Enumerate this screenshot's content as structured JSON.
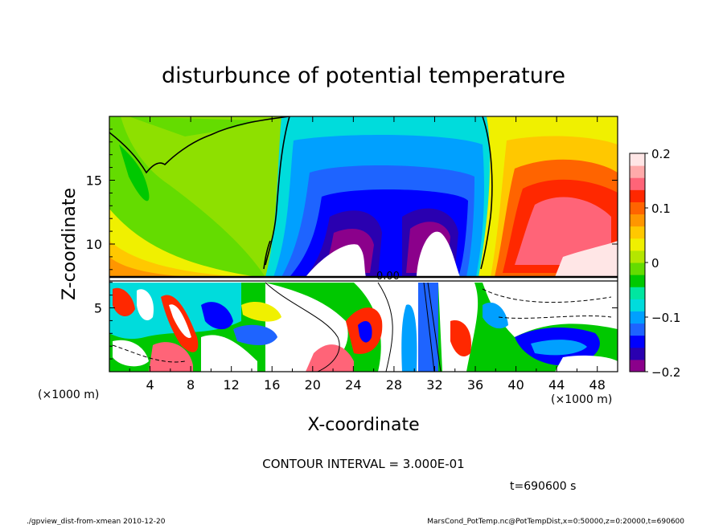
{
  "chart_data": {
    "type": "heatmap",
    "title": "disturbunce of potential temperature",
    "xlabel": "X-coordinate",
    "ylabel": "Z-coordinate",
    "x_unit_left": "(×1000 m)",
    "x_unit_right": "(×1000 m)",
    "xlim": [
      0,
      50
    ],
    "ylim": [
      0,
      20
    ],
    "x_ticks": [
      4,
      8,
      12,
      16,
      20,
      24,
      28,
      32,
      36,
      40,
      44,
      48
    ],
    "y_ticks": [
      5,
      10,
      15
    ],
    "colorbar": {
      "min": -0.2,
      "max": 0.2,
      "ticks": [
        0.2,
        0.1,
        0,
        -0.1,
        -0.2
      ],
      "colors": [
        "#8b008b",
        "#2a00b0",
        "#0000ff",
        "#1e64ff",
        "#00a0ff",
        "#00dcdc",
        "#00e6a0",
        "#00c800",
        "#64dc00",
        "#b4e600",
        "#f0f000",
        "#ffc800",
        "#ff9600",
        "#ff6400",
        "#ff2800",
        "#ff6478",
        "#ffaaaa",
        "#ffe6e6"
      ]
    },
    "contour_labels": [
      "0.00",
      "0.00"
    ],
    "contour_interval_text": "CONTOUR INTERVAL = 3.000E-01",
    "time_text": "t=690600 s"
  },
  "footer": {
    "left": "./gpview_dist-from-xmean  2010-12-20",
    "right": "MarsCond_PotTemp.nc@PotTempDist,x=0:50000,z=0:20000,t=690600"
  }
}
